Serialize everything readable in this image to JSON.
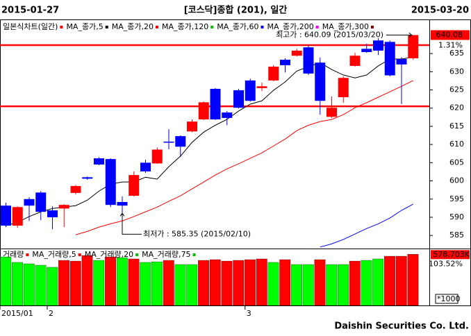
{
  "header": {
    "start_date": "2015-01-27",
    "title": "[코스닥]종합 (201), 일간",
    "end_date": "2015-03-20"
  },
  "footer": "Daishin Securities Co. Ltd.",
  "chart_data": [
    {
      "type": "candlestick",
      "name": "일본식차트(일간)",
      "color": "#ff0000",
      "up_color": "#ff0000",
      "down_color": "#0000ff",
      "categories": [
        "2015/01",
        null,
        null,
        null,
        "2",
        null,
        null,
        null,
        null,
        null,
        null,
        null,
        null,
        null,
        null,
        null,
        null,
        null,
        null,
        null,
        null,
        "3",
        null,
        null,
        null,
        null,
        null,
        null,
        null,
        null,
        null,
        null,
        null,
        null,
        null,
        null
      ],
      "open": [
        593.2,
        587.7,
        595,
        596.8,
        591.9,
        592.4,
        596.7,
        601,
        606.2,
        606,
        594.2,
        595.9,
        605,
        604.8,
        610.8,
        612.3,
        613.6,
        616.9,
        625.3,
        618.8,
        624.9,
        627.6,
        625.5,
        627.6,
        633.3,
        634.4,
        636.7,
        632.5,
        617.6,
        623,
        631.6,
        636.3,
        638.6,
        638.2,
        633.5,
        633.7
      ],
      "high": [
        594,
        593,
        595.5,
        597.2,
        593,
        593.6,
        598.9,
        601.2,
        606.5,
        606.2,
        595.7,
        602.6,
        605.8,
        609.2,
        614.2,
        612.5,
        616.9,
        621.8,
        625.5,
        619.2,
        625.3,
        628.1,
        627,
        631.8,
        633.7,
        636.3,
        637.3,
        633.9,
        623.2,
        628.7,
        635.2,
        637.7,
        639.2,
        638.6,
        634,
        640.09
      ],
      "low": [
        587.3,
        587.1,
        589,
        589.2,
        586.7,
        587.3,
        596.3,
        600.3,
        604.3,
        592.8,
        585.35,
        595.7,
        602.2,
        604.7,
        608.7,
        606.6,
        613.4,
        616.7,
        616.7,
        615.3,
        619.9,
        621.8,
        624.7,
        627.4,
        629.8,
        634.2,
        629.1,
        618.2,
        617.3,
        621.5,
        631.4,
        635.2,
        634.6,
        628.7,
        621.1,
        633.3
      ],
      "close": [
        587.7,
        592.8,
        593.2,
        591.5,
        590,
        593.4,
        598.6,
        600.6,
        604.5,
        593.4,
        593.2,
        601.6,
        602.6,
        608.6,
        610.5,
        609.4,
        616.3,
        621.6,
        616.9,
        617.3,
        620.1,
        622,
        626,
        631.4,
        631.8,
        635.8,
        629.5,
        622,
        620.1,
        628.3,
        634.4,
        635.4,
        635.8,
        629,
        632,
        640.08
      ],
      "series": [
        {
          "name": "MA_종가,5",
          "color": "#000000",
          "values": [
            587.7,
            588.6,
            590.2,
            591.5,
            592.4,
            592.8,
            593.2,
            594.7,
            597.2,
            599.1,
            599.7,
            599.7,
            601,
            600.5,
            603.9,
            606.8,
            610.6,
            613.4,
            615.3,
            616.9,
            619.2,
            621.1,
            622,
            624.9,
            627.2,
            630.2,
            631.4,
            632.5,
            630.6,
            629.1,
            628.3,
            629.1,
            631.6,
            633.5,
            633.5,
            634
          ]
        },
        {
          "name": "MA_종가,20",
          "color": "#ff0000",
          "values": [
            null,
            null,
            null,
            null,
            null,
            null,
            585.2,
            586.1,
            587.3,
            588.2,
            589,
            590.2,
            591.5,
            592.8,
            594.4,
            595.9,
            597.8,
            599.7,
            601.6,
            603.3,
            604.7,
            606.2,
            607.7,
            609.6,
            611.5,
            613.8,
            615.3,
            616.3,
            616.9,
            618.2,
            620.1,
            621.5,
            623,
            624.5,
            626,
            627.6
          ]
        },
        {
          "name": "MA_종가,120",
          "color": "#00c000",
          "values": [
            null,
            null,
            null,
            null,
            null,
            null,
            null,
            null,
            null,
            null,
            null,
            null,
            null,
            null,
            null,
            null,
            null,
            null,
            null,
            null,
            null,
            null,
            null,
            null,
            null,
            null,
            null,
            null,
            null,
            null,
            null,
            null,
            null,
            null,
            null,
            null
          ]
        },
        {
          "name": "MA_종가,60",
          "color": "#0000ff",
          "values": [
            null,
            null,
            null,
            null,
            null,
            null,
            null,
            null,
            null,
            null,
            null,
            null,
            null,
            null,
            null,
            null,
            null,
            null,
            null,
            null,
            null,
            null,
            null,
            null,
            null,
            null,
            null,
            581.8,
            582.7,
            583.9,
            585.4,
            586.9,
            588.2,
            589.8,
            591.9,
            593.6
          ]
        },
        {
          "name": "MA_종가,200",
          "color": "#ff00ff",
          "values": [
            null,
            null,
            null,
            null,
            null,
            null,
            null,
            null,
            null,
            null,
            null,
            null,
            null,
            null,
            null,
            null,
            null,
            null,
            null,
            null,
            null,
            null,
            null,
            null,
            null,
            null,
            null,
            null,
            null,
            null,
            null,
            null,
            null,
            null,
            null,
            null
          ]
        },
        {
          "name": "MA_종가,300",
          "color": "#800000",
          "values": [
            null,
            null,
            null,
            null,
            null,
            null,
            null,
            null,
            null,
            null,
            null,
            null,
            null,
            null,
            null,
            null,
            null,
            null,
            null,
            null,
            null,
            null,
            null,
            null,
            null,
            null,
            null,
            null,
            null,
            null,
            null,
            null,
            null,
            null,
            null,
            null
          ]
        }
      ],
      "hlines": [
        637.3,
        620.5
      ],
      "ylim": [
        581.6,
        641.7
      ],
      "yticks": [
        585,
        590,
        595,
        600,
        605,
        610,
        615,
        620,
        625,
        630,
        635
      ],
      "last_label": "640.08",
      "change_label": "1.31%",
      "high_note": "최고가 : 640.09 (2015/03/20)",
      "low_note": "최저가 : 585.35 (2015/02/10)"
    },
    {
      "type": "bar",
      "name": "거래량",
      "color": "#ff0000",
      "values": [
        549000,
        487000,
        471000,
        455000,
        432000,
        510000,
        502000,
        565000,
        510000,
        549000,
        541000,
        526000,
        487000,
        494000,
        510000,
        463000,
        463000,
        510000,
        518000,
        502000,
        510000,
        518000,
        526000,
        487000,
        518000,
        463000,
        463000,
        518000,
        463000,
        463000,
        502000,
        510000,
        526000,
        557000,
        557000,
        578703
      ],
      "colors": [
        "#00ff00",
        "#00ff00",
        "#00ff00",
        "#00ff00",
        "#00ff00",
        "#ff0000",
        "#ff0000",
        "#ff0000",
        "#00ff00",
        "#ff0000",
        "#00ff00",
        "#ff0000",
        "#00ff00",
        "#00ff00",
        "#ff0000",
        "#00ff00",
        "#00ff00",
        "#ff0000",
        "#ff0000",
        "#ff0000",
        "#ff0000",
        "#ff0000",
        "#ff0000",
        "#00ff00",
        "#ff0000",
        "#00ff00",
        "#00ff00",
        "#ff0000",
        "#00ff00",
        "#00ff00",
        "#ff0000",
        "#00ff00",
        "#00ff00",
        "#ff0000",
        "#ff0000",
        "#ff0000"
      ],
      "series": [
        {
          "name": "MA_거래량,5",
          "color": "#ff0000",
          "values": [
            null,
            null,
            null,
            null,
            null,
            null,
            null,
            null,
            null,
            null,
            null,
            null,
            null,
            null,
            null,
            null,
            null,
            null,
            null,
            null,
            null,
            null,
            null,
            null,
            null,
            null,
            null,
            null,
            null,
            null,
            null,
            null,
            null,
            null,
            null,
            null
          ]
        },
        {
          "name": "MA_거래량,20",
          "color": "#00c000",
          "values": [
            null,
            null,
            null,
            null,
            null,
            null,
            null,
            null,
            null,
            null,
            null,
            null,
            null,
            null,
            null,
            null,
            null,
            null,
            null,
            null,
            null,
            null,
            null,
            null,
            null,
            null,
            null,
            null,
            null,
            null,
            null,
            null,
            null,
            null,
            null,
            null
          ]
        },
        {
          "name": "MA_거래량,75",
          "color": "#00c000",
          "values": [
            null,
            null,
            null,
            null,
            null,
            null,
            null,
            null,
            null,
            null,
            null,
            null,
            null,
            null,
            null,
            null,
            null,
            null,
            null,
            null,
            null,
            null,
            null,
            null,
            null,
            null,
            null,
            null,
            null,
            null,
            null,
            null,
            null,
            null,
            null,
            null
          ]
        }
      ],
      "ylim": [
        0,
        620000
      ],
      "last_label": "578,703K",
      "change_label": "103.52%",
      "unit_label": "*1000"
    }
  ]
}
